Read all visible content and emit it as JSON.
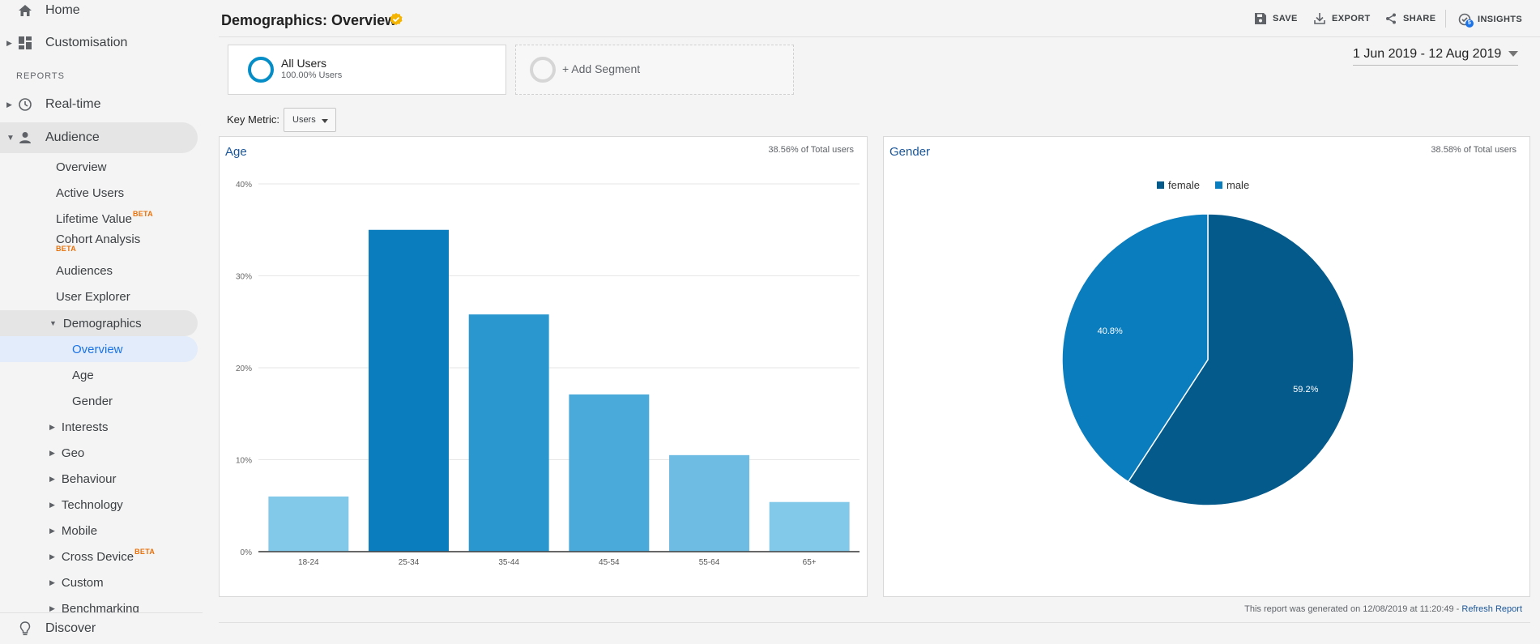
{
  "sidebar": {
    "home": "Home",
    "customisation": "Customisation",
    "reports_header": "REPORTS",
    "realtime": "Real-time",
    "audience": "Audience",
    "audience_items": [
      {
        "label": "Overview"
      },
      {
        "label": "Active Users"
      },
      {
        "label": "Lifetime Value",
        "badge": "BETA"
      },
      {
        "label": "Cohort Analysis",
        "badge": "BETA"
      },
      {
        "label": "Audiences"
      },
      {
        "label": "User Explorer"
      }
    ],
    "demographics": "Demographics",
    "demographics_items": [
      "Overview",
      "Age",
      "Gender"
    ],
    "more_items": [
      {
        "label": "Interests"
      },
      {
        "label": "Geo"
      },
      {
        "label": "Behaviour"
      },
      {
        "label": "Technology"
      },
      {
        "label": "Mobile"
      },
      {
        "label": "Cross Device",
        "badge": "BETA"
      },
      {
        "label": "Custom"
      },
      {
        "label": "Benchmarking"
      }
    ],
    "discover": "Discover"
  },
  "header": {
    "title": "Demographics: Overview",
    "save": "SAVE",
    "export": "EXPORT",
    "share": "SHARE",
    "insights": "INSIGHTS",
    "insights_count": "5"
  },
  "segments": {
    "all_users": "All Users",
    "all_users_sub": "100.00% Users",
    "add_segment": "+ Add Segment"
  },
  "date_range": "1 Jun 2019 - 12 Aug 2019",
  "key_metric": {
    "label": "Key Metric:",
    "value": "Users"
  },
  "age_panel": {
    "title": "Age",
    "pct": "38.56% of Total users"
  },
  "gender_panel": {
    "title": "Gender",
    "pct": "38.58% of Total users"
  },
  "report_note": {
    "text": "This report was generated on 12/08/2019 at 11:20:49 - ",
    "link": "Refresh Report"
  },
  "colors": {
    "female": "#055a8c",
    "male": "#0a7dbf",
    "accent": "#058dc7"
  },
  "chart_data": [
    {
      "type": "bar",
      "categories": [
        "18-24",
        "25-34",
        "35-44",
        "45-54",
        "55-64",
        "65+"
      ],
      "values": [
        6.0,
        35.0,
        25.8,
        17.1,
        10.5,
        5.4
      ],
      "ylim": [
        0,
        40
      ],
      "yticks": [
        "0%",
        "10%",
        "20%",
        "30%",
        "40%"
      ],
      "grid": true
    },
    {
      "type": "pie",
      "labels": [
        "female",
        "male"
      ],
      "values": [
        59.2,
        40.8
      ],
      "data_labels": [
        "59.2%",
        "40.8%"
      ],
      "legend": "top"
    }
  ]
}
